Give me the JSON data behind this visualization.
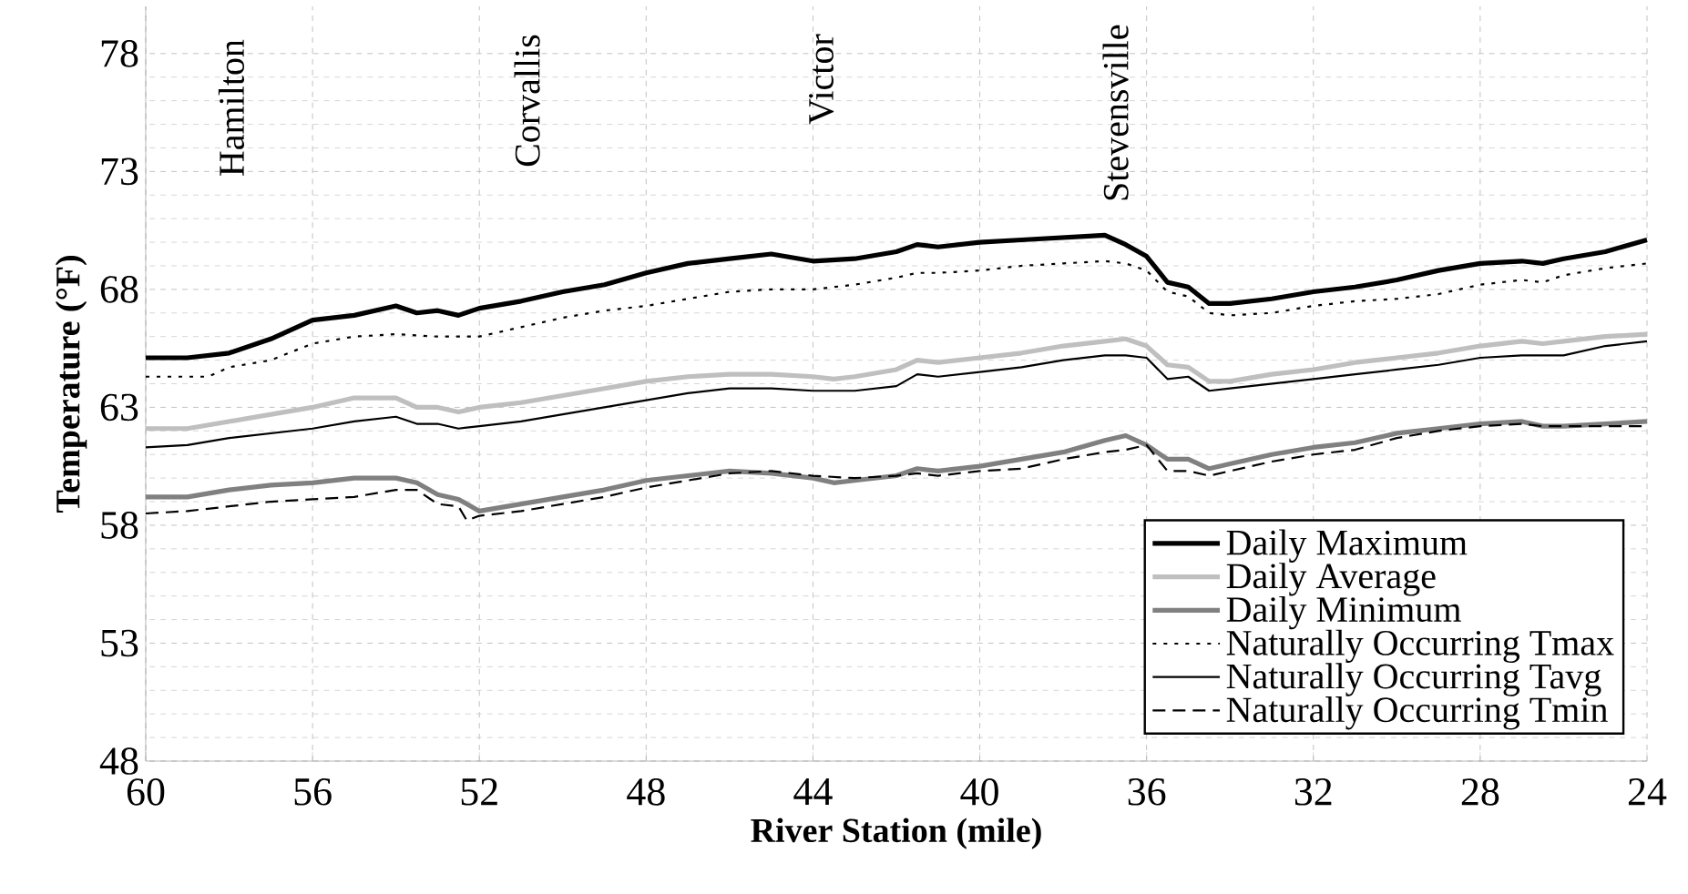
{
  "chart_data": {
    "type": "line",
    "xlabel": "River Station (mile)",
    "ylabel": "Temperature (°F)",
    "xlim": [
      60,
      24
    ],
    "ylim": [
      48,
      80
    ],
    "xticks": [
      60,
      56,
      52,
      48,
      44,
      40,
      36,
      32,
      28,
      24
    ],
    "yticks": [
      48,
      53,
      58,
      63,
      68,
      73,
      78
    ],
    "grid": true,
    "legend": "bottom right",
    "marker": "none",
    "annotations": [
      "Hamilton",
      "Corvallis",
      "Victor",
      "Stevensville"
    ],
    "series": [
      {
        "name": "Daily Maximum",
        "color": "#000000",
        "line_style": "solid",
        "x": [
          60,
          59,
          58,
          57,
          56,
          55,
          54,
          53.5,
          53,
          52.5,
          52,
          51,
          50,
          49,
          48,
          47,
          46,
          45,
          44,
          43,
          42,
          41.5,
          41,
          40,
          39,
          38,
          37,
          36.5,
          36,
          35.5,
          35,
          34.5,
          34,
          33,
          32,
          31,
          30,
          29,
          28,
          27,
          26.5,
          26,
          25,
          24
        ],
        "values": [
          65.1,
          65.1,
          65.3,
          65.9,
          66.7,
          66.9,
          67.3,
          67.0,
          67.1,
          66.9,
          67.2,
          67.5,
          67.9,
          68.2,
          68.7,
          69.1,
          69.3,
          69.5,
          69.2,
          69.3,
          69.6,
          69.9,
          69.8,
          70.0,
          70.1,
          70.2,
          70.3,
          69.9,
          69.4,
          68.3,
          68.1,
          67.4,
          67.4,
          67.6,
          67.9,
          68.1,
          68.4,
          68.8,
          69.1,
          69.2,
          69.1,
          69.3,
          69.6,
          70.1
        ]
      },
      {
        "name": "Daily Average",
        "color": "#bfbfbf",
        "line_style": "solid",
        "x": [
          60,
          59,
          58,
          57,
          56,
          55,
          54,
          53.5,
          53,
          52.5,
          52,
          51,
          50,
          49,
          48,
          47,
          46,
          45,
          44,
          43.5,
          43,
          42,
          41.5,
          41,
          40,
          39,
          38,
          37,
          36.5,
          36,
          35.5,
          35,
          34.5,
          34,
          33,
          32,
          31,
          30,
          29,
          28,
          27,
          26.5,
          26,
          25,
          24
        ],
        "values": [
          62.1,
          62.1,
          62.4,
          62.7,
          63.0,
          63.4,
          63.4,
          63.0,
          63.0,
          62.8,
          63.0,
          63.2,
          63.5,
          63.8,
          64.1,
          64.3,
          64.4,
          64.4,
          64.3,
          64.2,
          64.3,
          64.6,
          65.0,
          64.9,
          65.1,
          65.3,
          65.6,
          65.8,
          65.9,
          65.6,
          64.8,
          64.7,
          64.1,
          64.1,
          64.4,
          64.6,
          64.9,
          65.1,
          65.3,
          65.6,
          65.8,
          65.7,
          65.8,
          66.0,
          66.1
        ]
      },
      {
        "name": "Daily Minimum",
        "color": "#808080",
        "line_style": "solid",
        "x": [
          60,
          59,
          58,
          57,
          56,
          55,
          54,
          53.5,
          53,
          52.5,
          52,
          51,
          50,
          49,
          48,
          47,
          46,
          45,
          44,
          43.5,
          43,
          42,
          41.5,
          41,
          40,
          39,
          38,
          37,
          36.5,
          36,
          35.5,
          35,
          34.5,
          34,
          33,
          32,
          31,
          30,
          29,
          28,
          27,
          26.5,
          26,
          25,
          24
        ],
        "values": [
          59.2,
          59.2,
          59.5,
          59.7,
          59.8,
          60.0,
          60.0,
          59.8,
          59.3,
          59.1,
          58.6,
          58.9,
          59.2,
          59.5,
          59.9,
          60.1,
          60.3,
          60.2,
          60.0,
          59.8,
          59.9,
          60.1,
          60.4,
          60.3,
          60.5,
          60.8,
          61.1,
          61.6,
          61.8,
          61.4,
          60.8,
          60.8,
          60.4,
          60.6,
          61.0,
          61.3,
          61.5,
          61.9,
          62.1,
          62.3,
          62.4,
          62.2,
          62.2,
          62.3,
          62.4
        ]
      },
      {
        "name": "Naturally Occurring Tmax",
        "color": "#000000",
        "line_style": "dotted",
        "x": [
          60,
          58.5,
          58,
          57,
          56,
          55,
          54,
          53,
          52,
          51,
          50,
          49,
          48,
          47,
          46,
          45,
          44,
          43,
          42,
          41.5,
          41,
          40,
          39,
          38,
          37,
          36.5,
          36,
          35.5,
          35,
          34.5,
          34,
          33,
          32,
          31,
          30,
          29,
          28,
          27,
          26.5,
          26,
          25,
          24
        ],
        "values": [
          64.3,
          64.3,
          64.7,
          65.0,
          65.7,
          66.0,
          66.1,
          66.0,
          66.0,
          66.4,
          66.8,
          67.1,
          67.3,
          67.6,
          67.9,
          68.0,
          68.0,
          68.2,
          68.5,
          68.7,
          68.7,
          68.8,
          69.0,
          69.1,
          69.2,
          69.1,
          68.8,
          67.9,
          67.7,
          67.0,
          66.9,
          67.0,
          67.3,
          67.5,
          67.6,
          67.8,
          68.2,
          68.4,
          68.3,
          68.6,
          68.9,
          69.1
        ]
      },
      {
        "name": "Naturally Occurring Tavg",
        "color": "#000000",
        "line_style": "solid",
        "x": [
          60,
          59,
          58,
          57,
          56,
          55,
          54,
          53.5,
          53,
          52.5,
          52,
          51,
          50,
          49,
          48,
          47,
          46,
          45,
          44,
          43,
          42,
          41.5,
          41,
          40,
          39,
          38,
          37,
          36.5,
          36,
          35.5,
          35,
          34.5,
          34,
          33,
          32,
          31,
          30,
          29,
          28,
          27,
          26,
          25,
          24
        ],
        "values": [
          61.3,
          61.4,
          61.7,
          61.9,
          62.1,
          62.4,
          62.6,
          62.3,
          62.3,
          62.1,
          62.2,
          62.4,
          62.7,
          63.0,
          63.3,
          63.6,
          63.8,
          63.8,
          63.7,
          63.7,
          63.9,
          64.4,
          64.3,
          64.5,
          64.7,
          65.0,
          65.2,
          65.2,
          65.1,
          64.2,
          64.3,
          63.7,
          63.8,
          64.0,
          64.2,
          64.4,
          64.6,
          64.8,
          65.1,
          65.2,
          65.2,
          65.6,
          65.8
        ]
      },
      {
        "name": "Naturally Occurring Tmin",
        "color": "#000000",
        "line_style": "dashed",
        "x": [
          60,
          59,
          58,
          57,
          56,
          55,
          54,
          53.5,
          53,
          52.5,
          52.3,
          52,
          51,
          50,
          49,
          48,
          47,
          46,
          45,
          44,
          43,
          42,
          41.5,
          41,
          40,
          39,
          38,
          37,
          36.5,
          36,
          35.5,
          35,
          34.5,
          34,
          33,
          32,
          31,
          30,
          29,
          28,
          27,
          26.5,
          26,
          25,
          24
        ],
        "values": [
          58.5,
          58.6,
          58.8,
          59.0,
          59.1,
          59.2,
          59.5,
          59.5,
          58.9,
          58.8,
          58.2,
          58.4,
          58.6,
          58.9,
          59.2,
          59.6,
          59.9,
          60.2,
          60.3,
          60.1,
          60.0,
          60.1,
          60.2,
          60.1,
          60.3,
          60.4,
          60.8,
          61.1,
          61.2,
          61.4,
          60.3,
          60.3,
          60.1,
          60.3,
          60.7,
          61.0,
          61.2,
          61.7,
          62.0,
          62.2,
          62.3,
          62.2,
          62.2,
          62.2,
          62.2
        ]
      }
    ]
  }
}
